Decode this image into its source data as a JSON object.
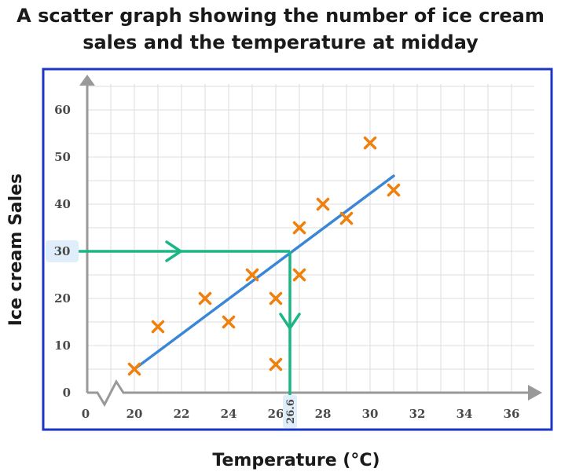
{
  "chart_data": {
    "type": "scatter",
    "title_lines": [
      "A scatter graph showing the number of ice cream",
      "sales and the temperature at midday"
    ],
    "xlabel": "Temperature (°C)",
    "ylabel": "Ice cream Sales",
    "x_origin_label": "0",
    "xlim": [
      20,
      36
    ],
    "ylim": [
      0,
      60
    ],
    "x_ticks": [
      20,
      22,
      24,
      26,
      28,
      30,
      32,
      34,
      36
    ],
    "y_ticks": [
      0,
      10,
      20,
      30,
      40,
      50,
      60
    ],
    "grid": true,
    "axis_break": "x",
    "points": [
      {
        "x": 20,
        "y": 5
      },
      {
        "x": 21,
        "y": 14
      },
      {
        "x": 23,
        "y": 20
      },
      {
        "x": 24,
        "y": 15
      },
      {
        "x": 25,
        "y": 25
      },
      {
        "x": 26,
        "y": 20
      },
      {
        "x": 26,
        "y": 6
      },
      {
        "x": 27,
        "y": 35
      },
      {
        "x": 27,
        "y": 25
      },
      {
        "x": 28,
        "y": 40
      },
      {
        "x": 29,
        "y": 37
      },
      {
        "x": 30,
        "y": 53
      },
      {
        "x": 31,
        "y": 43
      }
    ],
    "line_of_best_fit": {
      "from": [
        20,
        5
      ],
      "to": [
        31,
        46
      ]
    },
    "reading": {
      "y_value": 30,
      "y_label": "30",
      "x_value": 26.6,
      "x_label": "26.6"
    },
    "colors": {
      "points": "#f07f0c",
      "fit_line": "#3b87d6",
      "reading": "#1cb585",
      "frame": "#1b35c4",
      "axes": "#999999",
      "grid": "#dedede"
    }
  }
}
